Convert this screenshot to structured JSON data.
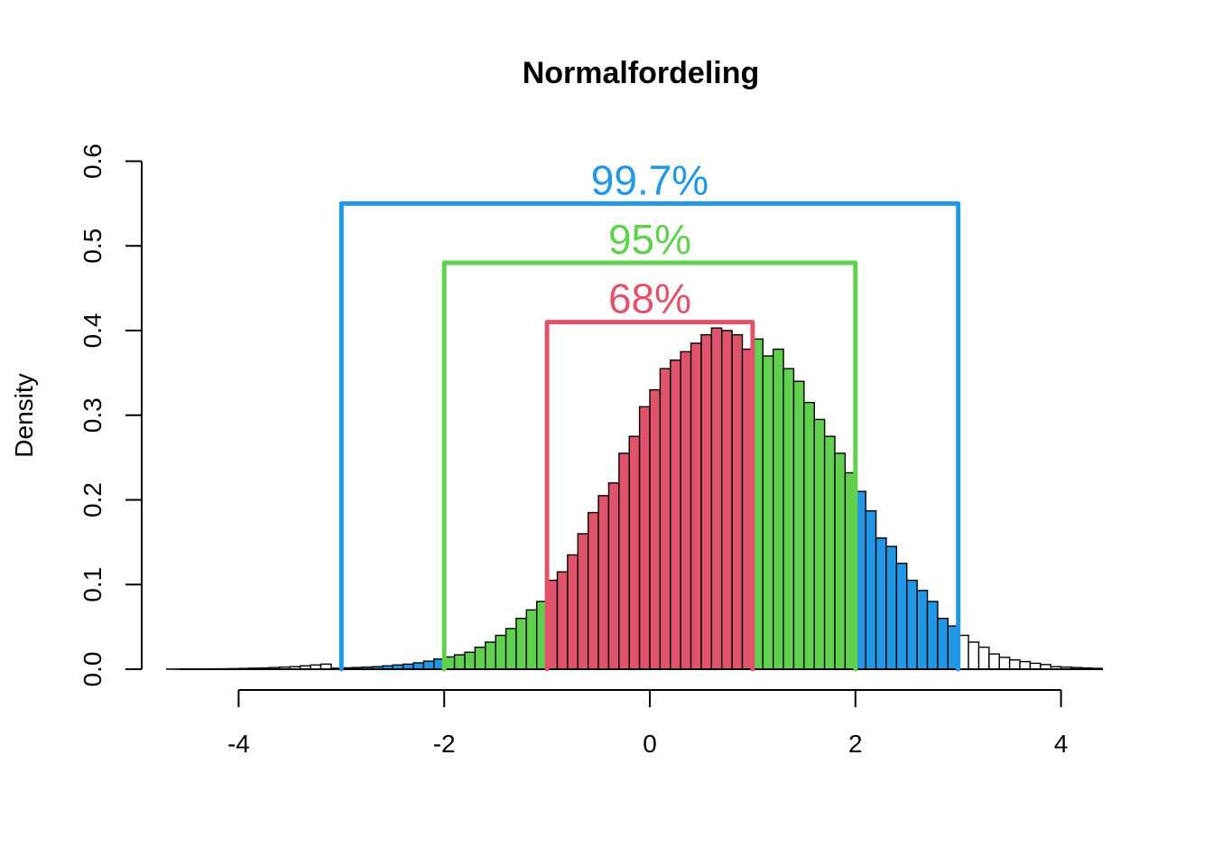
{
  "chart_data": {
    "type": "bar",
    "title": "Normalfordeling",
    "xlabel": "",
    "ylabel": "Density",
    "xlim": [
      -4.7,
      4.5
    ],
    "ylim": [
      0,
      0.6
    ],
    "x_ticks": [
      -4,
      -2,
      0,
      2,
      4
    ],
    "x_tick_labels": [
      "-4",
      "-2",
      "0",
      "2",
      "4"
    ],
    "y_ticks": [
      0.0,
      0.1,
      0.2,
      0.3,
      0.4,
      0.5,
      0.6
    ],
    "y_tick_labels": [
      "0.0",
      "0.1",
      "0.2",
      "0.3",
      "0.4",
      "0.5",
      "0.6"
    ],
    "grid": false,
    "legend": "none",
    "bin_width": 0.1,
    "bins_start": -4.7,
    "densities": [
      0.0002,
      0.0002,
      0.0002,
      0.0003,
      0.0004,
      0.0005,
      0.0007,
      0.0009,
      0.0012,
      0.0015,
      0.002,
      0.0025,
      0.003,
      0.004,
      0.005,
      0.006,
      0.0012,
      0.0016,
      0.002,
      0.0025,
      0.003,
      0.004,
      0.005,
      0.006,
      0.0075,
      0.0095,
      0.012,
      0.0145,
      0.017,
      0.02,
      0.026,
      0.032,
      0.04,
      0.048,
      0.06,
      0.07,
      0.08,
      0.105,
      0.115,
      0.135,
      0.16,
      0.185,
      0.205,
      0.22,
      0.255,
      0.275,
      0.31,
      0.33,
      0.355,
      0.365,
      0.375,
      0.385,
      0.395,
      0.403,
      0.4,
      0.395,
      0.378,
      0.39,
      0.37,
      0.378,
      0.355,
      0.34,
      0.315,
      0.295,
      0.275,
      0.255,
      0.232,
      0.21,
      0.187,
      0.155,
      0.145,
      0.125,
      0.105,
      0.093,
      0.08,
      0.06,
      0.051,
      0.04,
      0.032,
      0.026,
      0.018,
      0.014,
      0.011,
      0.009,
      0.007,
      0.0055,
      0.003,
      0.0025,
      0.002,
      0.0015,
      0.001
    ],
    "bin_colors": {
      "outer_tail": "#ffffff",
      "beyond_2sd": "#2297e6",
      "within_2sd": "#61d04f",
      "within_1sd": "#df536b"
    },
    "brackets": [
      {
        "label": "99.7%",
        "from": -3,
        "to": 3,
        "height": 0.55,
        "color": "#2297e6"
      },
      {
        "label": "95%",
        "from": -2,
        "to": 2,
        "height": 0.48,
        "color": "#61d04f"
      },
      {
        "label": "68%",
        "from": -1,
        "to": 1,
        "height": 0.41,
        "color": "#df536b"
      }
    ]
  }
}
